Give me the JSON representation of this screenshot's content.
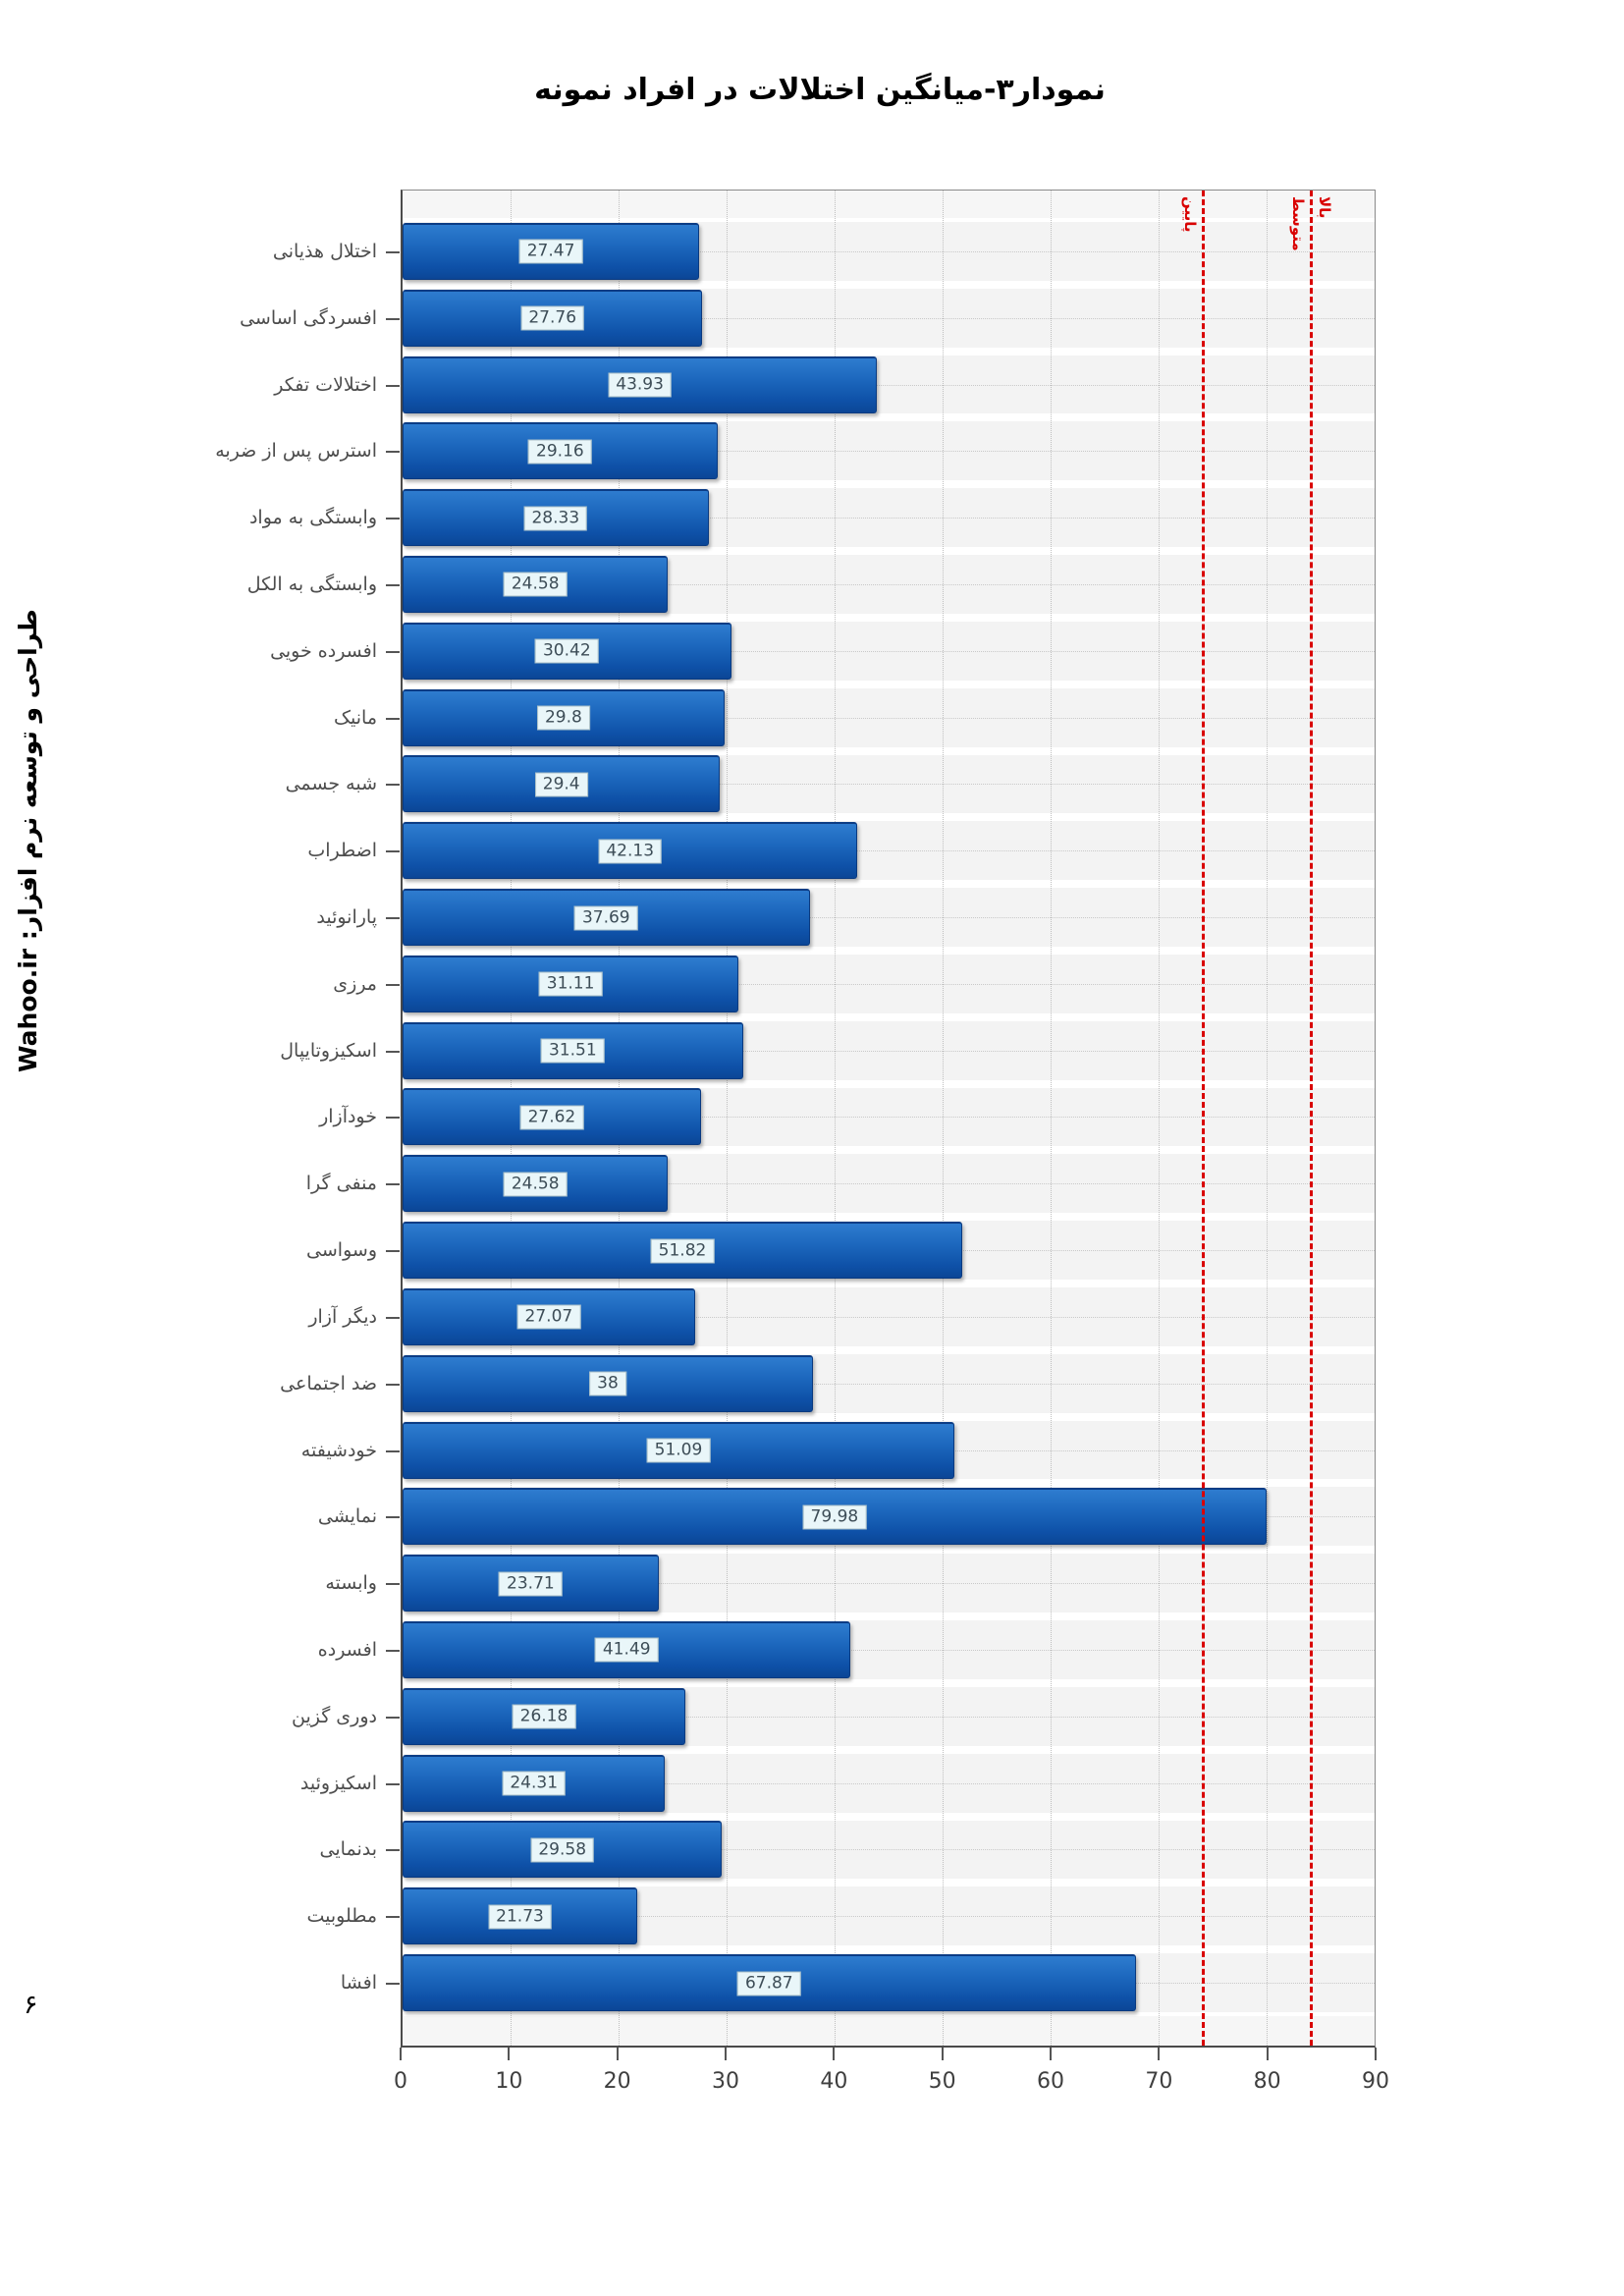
{
  "page": {
    "title": "نمودار۳-میانگین اختلالات در افراد نمونه",
    "credit": "طراحی و توسعه نرم افزار: Wahoo.ir",
    "page_number": "۶"
  },
  "chart_data": {
    "type": "bar",
    "orientation": "horizontal",
    "title": "نمودار۳-میانگین اختلالات در افراد نمونه",
    "xlabel": "",
    "ylabel": "",
    "xlim": [
      0,
      90
    ],
    "x_ticks": [
      0,
      10,
      20,
      30,
      40,
      50,
      60,
      70,
      80,
      90
    ],
    "grid": true,
    "legend": "none",
    "bar_colors": {
      "top": "#2e7ccf",
      "bottom": "#0b4696",
      "border": "#0a3a80"
    },
    "value_label_style": {
      "background": "#e9f6f9",
      "text": "#3d4d57"
    },
    "categories": [
      "اختلال هذیانی",
      "افسردگی اساسی",
      "اختلالات تفکر",
      "استرس پس از ضربه",
      "وابستگی به مواد",
      "وابستگی به الکل",
      "افسرده خویی",
      "مانیک",
      "شبه جسمی",
      "اضطراب",
      "پارانوئید",
      "مرزی",
      "اسکیزوتایپال",
      "خودآزار",
      "منفی گرا",
      "وسواسی",
      "دیگر آزار",
      "ضد اجتماعی",
      "خودشیفته",
      "نمایشی",
      "وابسته",
      "افسرده",
      "دوری گزین",
      "اسکیزوئید",
      "بدنمایی",
      "مطلوبیت",
      "افشا"
    ],
    "values": [
      27.47,
      27.76,
      43.93,
      29.16,
      28.33,
      24.58,
      30.42,
      29.8,
      29.4,
      42.13,
      37.69,
      31.11,
      31.51,
      27.62,
      24.58,
      51.82,
      27.07,
      38,
      51.09,
      79.98,
      23.71,
      41.49,
      26.18,
      24.31,
      29.58,
      21.73,
      67.87
    ],
    "value_labels": [
      "27.47",
      "27.76",
      "43.93",
      "29.16",
      "28.33",
      "24.58",
      "30.42",
      "29.8",
      "29.4",
      "42.13",
      "37.69",
      "31.11",
      "31.51",
      "27.62",
      "24.58",
      "51.82",
      "27.07",
      "38",
      "51.09",
      "79.98",
      "23.71",
      "41.49",
      "26.18",
      "24.31",
      "29.58",
      "21.73",
      "67.87"
    ],
    "reference_lines": [
      {
        "value": 74,
        "color": "#d90000",
        "style": "dashed"
      },
      {
        "value": 84,
        "color": "#d90000",
        "style": "dashed"
      }
    ],
    "region_labels": [
      {
        "text": "پایین",
        "position": 74,
        "side": "left"
      },
      {
        "text": "متوسط",
        "position": 84,
        "side": "left"
      },
      {
        "text": "بالا",
        "position": 84,
        "side": "right"
      }
    ]
  }
}
